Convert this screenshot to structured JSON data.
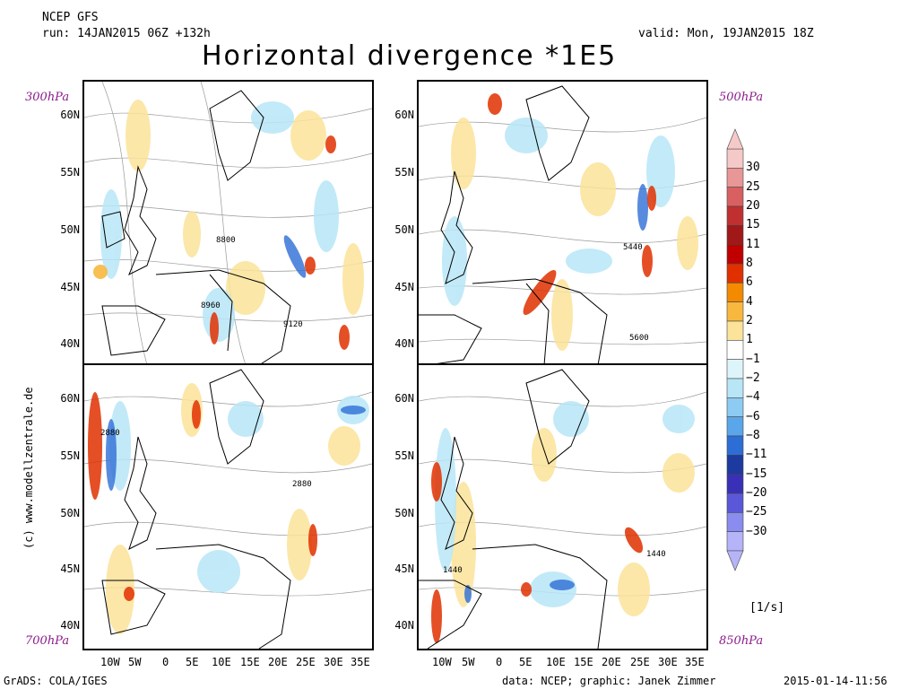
{
  "header": {
    "model": "NCEP GFS",
    "run": "run: 14JAN2015 06Z +132h",
    "valid": "valid: Mon, 19JAN2015 18Z",
    "title": "Horizontal divergence *1E5"
  },
  "panels": [
    {
      "level": "300hPa",
      "contours": [
        "8800",
        "8960",
        "9120"
      ]
    },
    {
      "level": "500hPa",
      "contours": [
        "5440",
        "5600"
      ]
    },
    {
      "level": "700hPa",
      "contours": [
        "2880",
        "2880"
      ]
    },
    {
      "level": "850hPa",
      "contours": [
        "1440",
        "1440"
      ]
    }
  ],
  "axes": {
    "top_lat": [
      "60N",
      "55N",
      "50N",
      "45N",
      "40N"
    ],
    "bottom_lat": [
      "60N",
      "55N",
      "50N",
      "45N",
      "40N"
    ],
    "lon": [
      "10W",
      "5W",
      "0",
      "5E",
      "10E",
      "15E",
      "20E",
      "25E",
      "30E",
      "35E"
    ]
  },
  "colorbar": {
    "unit": "[1/s]",
    "levels": [
      "30",
      "25",
      "20",
      "15",
      "11",
      "8",
      "6",
      "4",
      "2",
      "1",
      "−1",
      "−2",
      "−4",
      "−6",
      "−8",
      "−11",
      "−15",
      "−20",
      "−25",
      "−30"
    ],
    "colors": [
      "#f6c9c9",
      "#e89696",
      "#d86060",
      "#c03030",
      "#a01818",
      "#c00000",
      "#e03000",
      "#f48a00",
      "#f8b840",
      "#fbe39a",
      "#ffffff",
      "#def4fb",
      "#b8e6f7",
      "#8ecbf2",
      "#5aa6ea",
      "#2d6ed6",
      "#1c3aa0",
      "#3a30b8",
      "#5a58d8",
      "#8a8cf0",
      "#b6b4f8"
    ]
  },
  "credit": "(c) www.modellzentrale.de",
  "footer": {
    "left": "GrADS: COLA/IGES",
    "center": "data: NCEP; graphic: Janek Zimmer",
    "right": "2015-01-14-11:56"
  }
}
